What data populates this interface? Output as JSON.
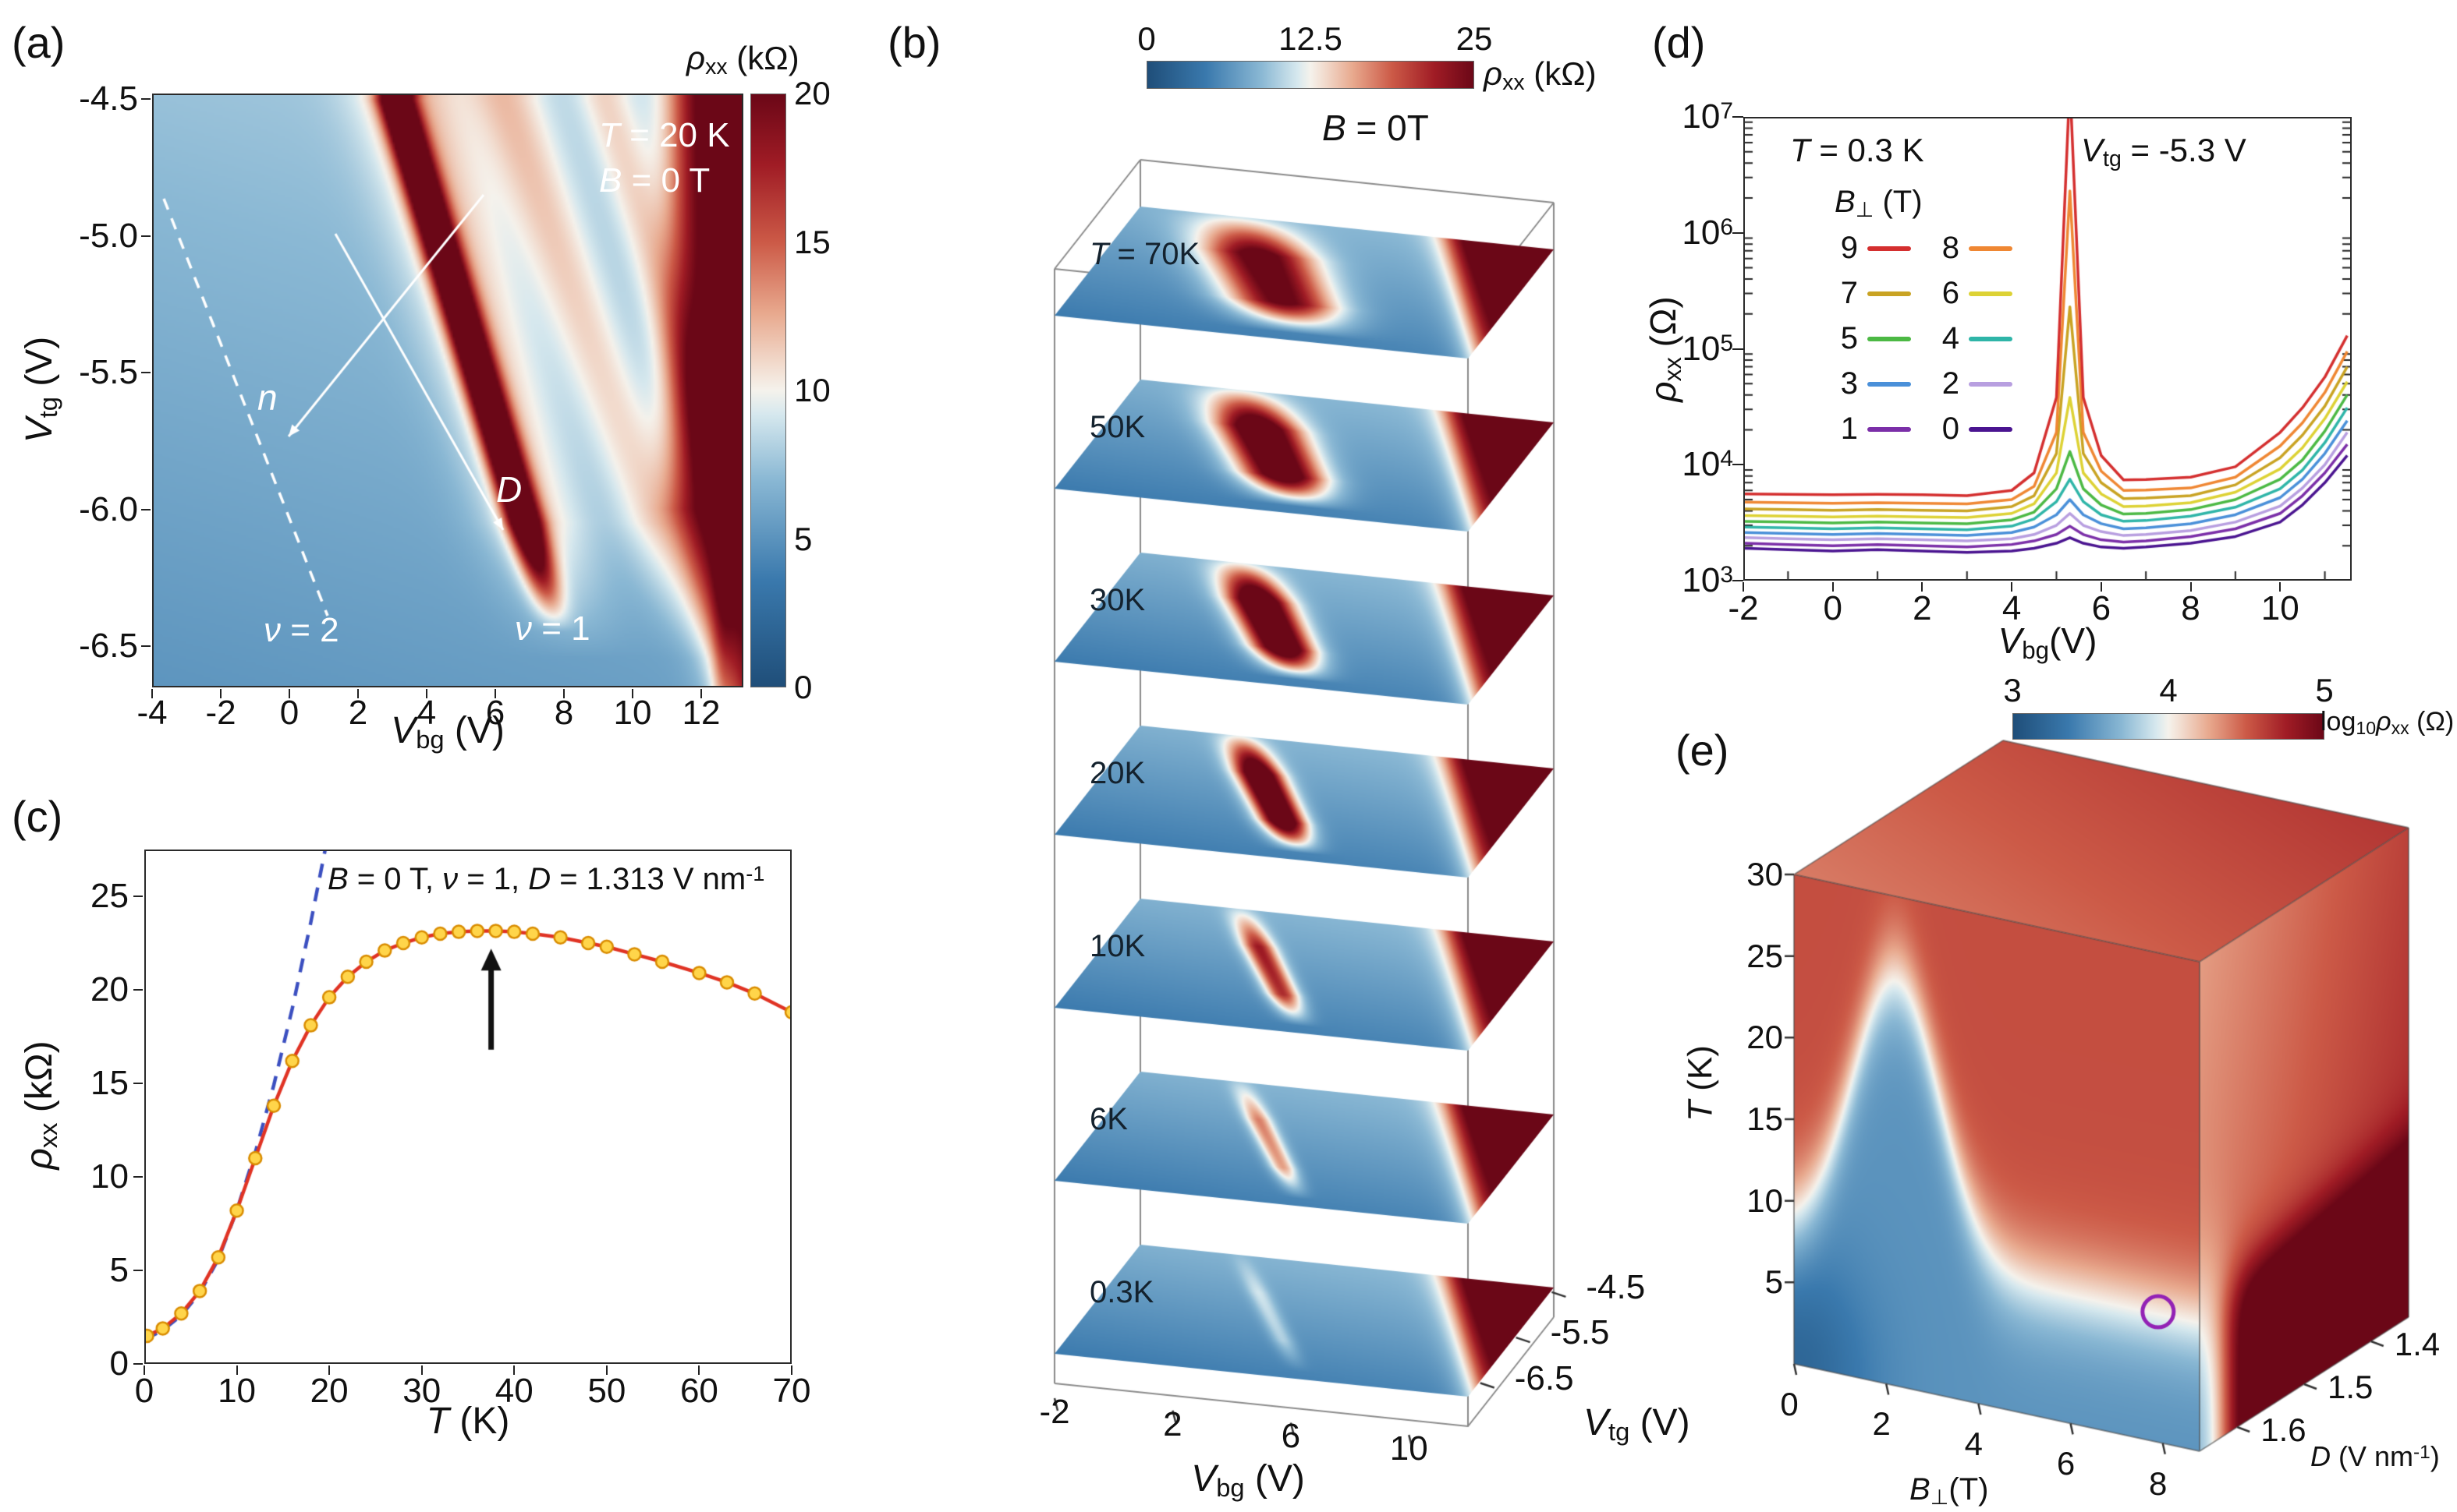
{
  "palette": {
    "stops": [
      {
        "t": 0,
        "c": "#1f4e79"
      },
      {
        "t": 0.18,
        "c": "#3a79ad"
      },
      {
        "t": 0.35,
        "c": "#8ab8d4"
      },
      {
        "t": 0.46,
        "c": "#d6e8ee"
      },
      {
        "t": 0.5,
        "c": "#f5f2ec"
      },
      {
        "t": 0.54,
        "c": "#f2ddd0"
      },
      {
        "t": 0.63,
        "c": "#e8a98e"
      },
      {
        "t": 0.75,
        "c": "#cc5a47"
      },
      {
        "t": 0.88,
        "c": "#a01c25"
      },
      {
        "t": 1,
        "c": "#6b0717"
      }
    ]
  },
  "chart_data": [
    {
      "id": "a",
      "type": "heatmap",
      "letter": "(a)",
      "xlabel": [
        [
          "V",
          "i"
        ],
        [
          "bg",
          "sub"
        ],
        [
          " (V)",
          ""
        ]
      ],
      "ylabel": [
        [
          "V",
          "i"
        ],
        [
          "tg",
          "sub"
        ],
        [
          " (V)",
          ""
        ]
      ],
      "x_ticks": [
        -4,
        -2,
        0,
        2,
        4,
        6,
        8,
        10,
        12
      ],
      "y_ticks": [
        "-4.5",
        "-5.0",
        "-5.5",
        "-6.0",
        "-6.5"
      ],
      "x_range": [
        -4,
        13.2
      ],
      "y_range": [
        -4.48,
        -6.65
      ],
      "colorbar": {
        "label": [
          [
            "ρ",
            "i"
          ],
          [
            "xx",
            "sub"
          ],
          [
            " (kΩ)",
            ""
          ]
        ],
        "ticks": [
          20,
          15,
          10,
          5,
          0
        ],
        "vmin": 0,
        "vmax": 20
      },
      "annotations": {
        "temp": [
          [
            "T",
            "i"
          ],
          [
            " = 20 K",
            ""
          ]
        ],
        "field": [
          [
            "B",
            "i"
          ],
          [
            " = 0 T",
            ""
          ]
        ],
        "nu2": [
          [
            "ν",
            "i"
          ],
          [
            " = 2",
            ""
          ]
        ],
        "nu1": [
          [
            "ν",
            "i"
          ],
          [
            " = 1",
            ""
          ]
        ],
        "n": [
          [
            "n",
            "i"
          ]
        ],
        "D": [
          [
            "D",
            "i"
          ]
        ]
      },
      "features": {
        "base_top": 7.4,
        "base_bottom": 5.1,
        "main_band": {
          "x_top": 3.1,
          "slope": 2.42,
          "width": 0.5,
          "amp": 20
        },
        "halo": {
          "offset": 0.4,
          "width": 1.6,
          "amp": 4.5
        },
        "band2": {
          "x_top": 6.3,
          "slope": 2.8,
          "width": 1.1,
          "amp": 4.0
        },
        "band3": {
          "x_top": 9.2,
          "slope": 2.42,
          "width": 0.8,
          "amp": 3.2
        },
        "right_block": {
          "x_start": 11.35,
          "amp": 15
        },
        "right_streak": {
          "x": 12.6,
          "width": 0.3,
          "amp": 2.2
        }
      }
    },
    {
      "id": "b",
      "type": "heatmap-stack",
      "letter": "(b)",
      "colorbar": {
        "label": [
          [
            "ρ",
            "i"
          ],
          [
            "xx",
            "sub"
          ],
          [
            " (kΩ)",
            ""
          ]
        ],
        "ticks": [
          "0",
          "12.5",
          "25"
        ],
        "vmin": 0,
        "vmax": 25
      },
      "field_note": [
        [
          "B",
          "i"
        ],
        [
          " = 0T",
          ""
        ]
      ],
      "xlabel": [
        [
          "V",
          "i"
        ],
        [
          "bg",
          "sub"
        ],
        [
          " (V)",
          ""
        ]
      ],
      "ylabel": [
        [
          "V",
          "i"
        ],
        [
          "tg",
          "sub"
        ],
        [
          " (V)",
          ""
        ]
      ],
      "x_ticks": [
        -2,
        2,
        6,
        10
      ],
      "y_ticks": [
        "-4.5",
        "-5.5",
        "-6.5"
      ],
      "x_range": [
        -2,
        12
      ],
      "y_range": [
        -6.8,
        -4.4
      ],
      "layers": [
        {
          "label": [
            [
              "T",
              "i"
            ],
            [
              " = 70K",
              ""
            ]
          ],
          "T": 70,
          "amp": 20,
          "w": 0.13
        },
        {
          "label": [
            [
              "50K",
              ""
            ]
          ],
          "T": 50,
          "amp": 24,
          "w": 0.1
        },
        {
          "label": [
            [
              "30K",
              ""
            ]
          ],
          "T": 30,
          "amp": 26,
          "w": 0.075
        },
        {
          "label": [
            [
              "20K",
              ""
            ]
          ],
          "T": 20,
          "amp": 26,
          "w": 0.055
        },
        {
          "label": [
            [
              "10K",
              ""
            ]
          ],
          "T": 10,
          "amp": 15,
          "w": 0.04
        },
        {
          "label": [
            [
              "6K",
              ""
            ]
          ],
          "T": 6,
          "amp": 10,
          "w": 0.032
        },
        {
          "label": [
            [
              "0.3K",
              ""
            ]
          ],
          "T": 0.3,
          "amp": 4,
          "w": 0.028
        }
      ]
    },
    {
      "id": "c",
      "type": "line",
      "letter": "(c)",
      "annotation": [
        [
          "B",
          "i"
        ],
        [
          " = 0 T,  ",
          ""
        ],
        [
          "ν",
          "i"
        ],
        [
          " = 1,  ",
          ""
        ],
        [
          "D",
          "i"
        ],
        [
          " = 1.313 V nm",
          ""
        ],
        [
          "-1",
          "sup"
        ]
      ],
      "xlabel": [
        [
          "T",
          "i"
        ],
        [
          " (K)",
          ""
        ]
      ],
      "ylabel": [
        [
          "ρ",
          "i"
        ],
        [
          "xx",
          "sub"
        ],
        [
          " (kΩ)",
          ""
        ]
      ],
      "x_ticks": [
        0,
        10,
        20,
        30,
        40,
        50,
        60,
        70
      ],
      "y_ticks": [
        0,
        5,
        10,
        15,
        20,
        25
      ],
      "x_range": [
        0,
        70
      ],
      "y_range": [
        0,
        27.5
      ],
      "series": {
        "T": [
          0.3,
          2,
          4,
          6,
          8,
          10,
          12,
          14,
          16,
          18,
          20,
          22,
          24,
          26,
          28,
          30,
          32,
          34,
          36,
          38,
          40,
          42,
          45,
          48,
          50,
          53,
          56,
          60,
          63,
          66,
          70
        ],
        "rho": [
          1.5,
          1.9,
          2.7,
          3.9,
          5.7,
          8.2,
          11.0,
          13.8,
          16.2,
          18.1,
          19.6,
          20.7,
          21.5,
          22.1,
          22.5,
          22.8,
          23.0,
          23.1,
          23.15,
          23.15,
          23.1,
          23.0,
          22.8,
          22.5,
          22.3,
          21.9,
          21.5,
          20.9,
          20.4,
          19.8,
          18.8
        ]
      },
      "fit": {
        "T": [
          0,
          2,
          4,
          6,
          8,
          10,
          12,
          14,
          16,
          18,
          20
        ],
        "rho": [
          1.3,
          1.8,
          2.6,
          3.8,
          5.6,
          8.2,
          11.3,
          14.9,
          19.0,
          23.6,
          28.6
        ]
      },
      "arrow": {
        "T": 37.5,
        "rho_from": 16.8,
        "rho_to": 22.2
      },
      "colors": {
        "line": "#e03324",
        "marker_fill": "#ffd54a",
        "marker_edge": "#d98c00",
        "fit": "#3b4fc0",
        "arrow": "#111111"
      }
    },
    {
      "id": "d",
      "type": "line-log",
      "letter": "(d)",
      "ann1": [
        [
          "T",
          "i"
        ],
        [
          " = 0.3 K",
          ""
        ]
      ],
      "ann2": [
        [
          "V",
          "i"
        ],
        [
          "tg",
          "sub"
        ],
        [
          " = -5.3 V",
          ""
        ]
      ],
      "legend_title": [
        [
          "B",
          "i"
        ],
        [
          "⊥",
          "sub"
        ],
        [
          " (T)",
          ""
        ]
      ],
      "xlabel": [
        [
          "V",
          "i"
        ],
        [
          "bg",
          "sub"
        ],
        [
          "(V)",
          ""
        ]
      ],
      "ylabel": [
        [
          "ρ",
          "i"
        ],
        [
          "xx",
          "sub"
        ],
        [
          " (Ω)",
          ""
        ]
      ],
      "x_ticks": [
        -2,
        0,
        2,
        4,
        6,
        8,
        10
      ],
      "y_exponents": [
        3,
        4,
        5,
        6,
        7
      ],
      "x_range": [
        -2,
        11.6
      ],
      "legend": [
        {
          "label": "9",
          "color": "#d42f2f"
        },
        {
          "label": "8",
          "color": "#ef8733"
        },
        {
          "label": "7",
          "color": "#c9a323"
        },
        {
          "label": "6",
          "color": "#ddd235"
        },
        {
          "label": "5",
          "color": "#4cb944"
        },
        {
          "label": "4",
          "color": "#2fb5a8"
        },
        {
          "label": "3",
          "color": "#4a90d9"
        },
        {
          "label": "2",
          "color": "#b89fe0"
        },
        {
          "label": "1",
          "color": "#7b2fa8"
        },
        {
          "label": "0",
          "color": "#4a1490"
        }
      ],
      "x": [
        -2,
        -1,
        0,
        1,
        2,
        3,
        4,
        4.5,
        5,
        5.3,
        5.6,
        6,
        6.5,
        7,
        8,
        9,
        10,
        10.5,
        11,
        11.5
      ],
      "series": [
        {
          "B": 0,
          "color": "#4a1490",
          "rho": [
            1900,
            1850,
            1800,
            1850,
            1800,
            1750,
            1800,
            1900,
            2100,
            2350,
            2100,
            1950,
            1900,
            1950,
            2100,
            2400,
            3200,
            4500,
            7000,
            12000
          ]
        },
        {
          "B": 1,
          "color": "#7b2fa8",
          "rho": [
            2100,
            2050,
            2000,
            2050,
            2000,
            1950,
            2050,
            2200,
            2500,
            2950,
            2500,
            2250,
            2150,
            2200,
            2400,
            2800,
            3800,
            5400,
            8500,
            15000
          ]
        },
        {
          "B": 2,
          "color": "#b89fe0",
          "rho": [
            2350,
            2300,
            2250,
            2300,
            2250,
            2200,
            2300,
            2500,
            3000,
            3800,
            3000,
            2650,
            2450,
            2500,
            2700,
            3200,
            4400,
            6300,
            10000,
            19000
          ]
        },
        {
          "B": 3,
          "color": "#4a90d9",
          "rho": [
            2600,
            2550,
            2500,
            2550,
            2500,
            2450,
            2600,
            2900,
            3700,
            5000,
            3700,
            3100,
            2800,
            2850,
            3100,
            3700,
            5200,
            7500,
            12500,
            24000
          ]
        },
        {
          "B": 4,
          "color": "#2fb5a8",
          "rho": [
            2900,
            2850,
            2800,
            2850,
            2800,
            2750,
            2950,
            3400,
            4800,
            7500,
            4800,
            3700,
            3250,
            3300,
            3600,
            4300,
            6200,
            9000,
            15500,
            31000
          ]
        },
        {
          "B": 5,
          "color": "#4cb944",
          "rho": [
            3250,
            3200,
            3150,
            3200,
            3150,
            3100,
            3350,
            3900,
            6200,
            13000,
            6200,
            4500,
            3750,
            3800,
            4100,
            5000,
            7500,
            11000,
            19500,
            40000
          ]
        },
        {
          "B": 6,
          "color": "#ddd235",
          "rho": [
            3650,
            3600,
            3550,
            3600,
            3550,
            3500,
            3800,
            4600,
            8500,
            38000,
            8500,
            5600,
            4350,
            4400,
            4700,
            5800,
            9200,
            14000,
            25000,
            52000
          ]
        },
        {
          "B": 7,
          "color": "#c9a323",
          "rho": [
            4150,
            4100,
            4050,
            4100,
            4050,
            4000,
            4350,
            5400,
            12500,
            230000,
            12500,
            7000,
            5100,
            5150,
            5400,
            6700,
            11500,
            18000,
            32000,
            70000
          ]
        },
        {
          "B": 8,
          "color": "#ef8733",
          "rho": [
            4750,
            4700,
            4650,
            4700,
            4650,
            4600,
            5000,
            6500,
            19000,
            2300000,
            19000,
            8800,
            6000,
            6050,
            6300,
            7800,
            14500,
            23000,
            42000,
            95000
          ]
        },
        {
          "B": 9,
          "color": "#d42f2f",
          "rho": [
            5600,
            5550,
            5500,
            5550,
            5500,
            5400,
            6000,
            8500,
            38000,
            20000000,
            38000,
            12000,
            7400,
            7450,
            7800,
            9600,
            19000,
            31000,
            57000,
            130000
          ]
        }
      ]
    },
    {
      "id": "e",
      "type": "heatmap-3d",
      "letter": "(e)",
      "colorbar": {
        "ticks": [
          "3",
          "4",
          "5"
        ],
        "label": [
          [
            "log",
            ""
          ],
          [
            "10",
            "sub"
          ],
          [
            "ρ",
            "i"
          ],
          [
            "xx",
            "sub"
          ],
          [
            " (Ω)",
            ""
          ]
        ],
        "vmin": 3,
        "vmax": 5
      },
      "axes": {
        "T": {
          "label": [
            [
              "T",
              "i"
            ],
            [
              " (K)",
              ""
            ]
          ],
          "ticks": [
            5,
            10,
            15,
            20,
            25,
            30
          ],
          "range": [
            0,
            30
          ]
        },
        "B": {
          "label": [
            [
              "B",
              "i"
            ],
            [
              "⊥",
              "sub"
            ],
            [
              "(T)",
              ""
            ]
          ],
          "ticks": [
            0,
            2,
            4,
            6,
            8
          ],
          "range": [
            0,
            8.8
          ]
        },
        "D": {
          "label": [
            [
              "D",
              "i"
            ],
            [
              " (V nm",
              ""
            ],
            [
              "-1",
              "sup"
            ],
            [
              ")",
              ""
            ]
          ],
          "ticks": [
            "1.6",
            "1.5",
            "1.4"
          ],
          "t": [
            0.18,
            0.5,
            0.82
          ]
        }
      },
      "circle": {
        "B": 7.9,
        "T": 8,
        "color": "#9322b5"
      },
      "field": {
        "boundary_base": 8,
        "boundary_peak_B": 2.2,
        "boundary_peak_h": 17,
        "boundary_peak_w": 1.35,
        "dark_T": 8.5,
        "dark_s0": 0.16,
        "level_blue": 3.5,
        "level_red": 4.55,
        "level_dark": 5.45
      }
    }
  ]
}
